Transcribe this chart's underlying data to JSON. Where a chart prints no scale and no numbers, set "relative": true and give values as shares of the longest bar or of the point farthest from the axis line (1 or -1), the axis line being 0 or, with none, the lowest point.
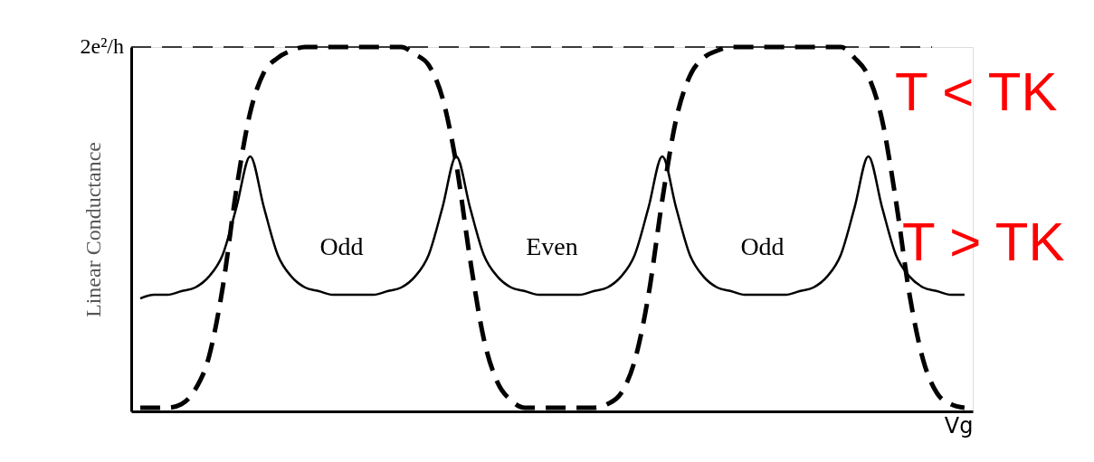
{
  "chart_data": {
    "type": "line",
    "relative": true,
    "xlabel": "Vg",
    "ylabel": "Linear Conductance",
    "tick_labels": false,
    "grid": false,
    "marker": "none",
    "categories": [
      null,
      null,
      null,
      null,
      null,
      null,
      null,
      null,
      null,
      null,
      null,
      null,
      null,
      null,
      null,
      null,
      null,
      null,
      null,
      null,
      null,
      null,
      null,
      null,
      null,
      null,
      null,
      null,
      null,
      null,
      null,
      null,
      null,
      null,
      null,
      null,
      null,
      null,
      null,
      null,
      null,
      null,
      null,
      null,
      null,
      null,
      null,
      null,
      null,
      null,
      null,
      null,
      null,
      null,
      null,
      null,
      null,
      null,
      null,
      null,
      null
    ],
    "series": [
      {
        "name": "T < TK",
        "color": "#000000",
        "line_style": "dashed",
        "values": [
          0.01,
          0.01,
          0.01,
          0.02,
          0.06,
          0.15,
          0.34,
          0.61,
          0.82,
          0.93,
          0.97,
          0.99,
          1,
          1,
          1,
          1,
          1,
          1,
          1,
          1,
          0.98,
          0.95,
          0.86,
          0.68,
          0.42,
          0.2,
          0.08,
          0.03,
          0.01,
          0.01,
          0.01,
          0.01,
          0.01,
          0.01,
          0.02,
          0.05,
          0.14,
          0.32,
          0.58,
          0.8,
          0.92,
          0.97,
          0.99,
          1,
          1,
          1,
          1,
          1,
          1,
          1,
          1,
          1,
          0.97,
          0.92,
          0.8,
          0.58,
          0.32,
          0.14,
          0.05,
          0.02,
          0.01
        ]
      },
      {
        "name": "T > TK",
        "color": "#000000",
        "line_style": "solid",
        "values": [
          0.31,
          0.32,
          0.32,
          0.33,
          0.34,
          0.37,
          0.43,
          0.56,
          0.7,
          0.56,
          0.43,
          0.37,
          0.34,
          0.33,
          0.32,
          0.32,
          0.32,
          0.32,
          0.33,
          0.34,
          0.37,
          0.43,
          0.56,
          0.7,
          0.56,
          0.43,
          0.37,
          0.34,
          0.33,
          0.32,
          0.32,
          0.32,
          0.32,
          0.33,
          0.34,
          0.37,
          0.43,
          0.56,
          0.7,
          0.56,
          0.43,
          0.37,
          0.34,
          0.33,
          0.32,
          0.32,
          0.32,
          0.32,
          0.33,
          0.34,
          0.37,
          0.43,
          0.56,
          0.7,
          0.56,
          0.43,
          0.37,
          0.34,
          0.33,
          0.32,
          0.32
        ]
      }
    ],
    "ref_lines": [
      {
        "axis": "y",
        "value": 1,
        "label": "2e²/h",
        "color": "#000000",
        "line_style": "dashed"
      }
    ],
    "annotations": [
      "Odd",
      "Even",
      "Odd"
    ]
  }
}
